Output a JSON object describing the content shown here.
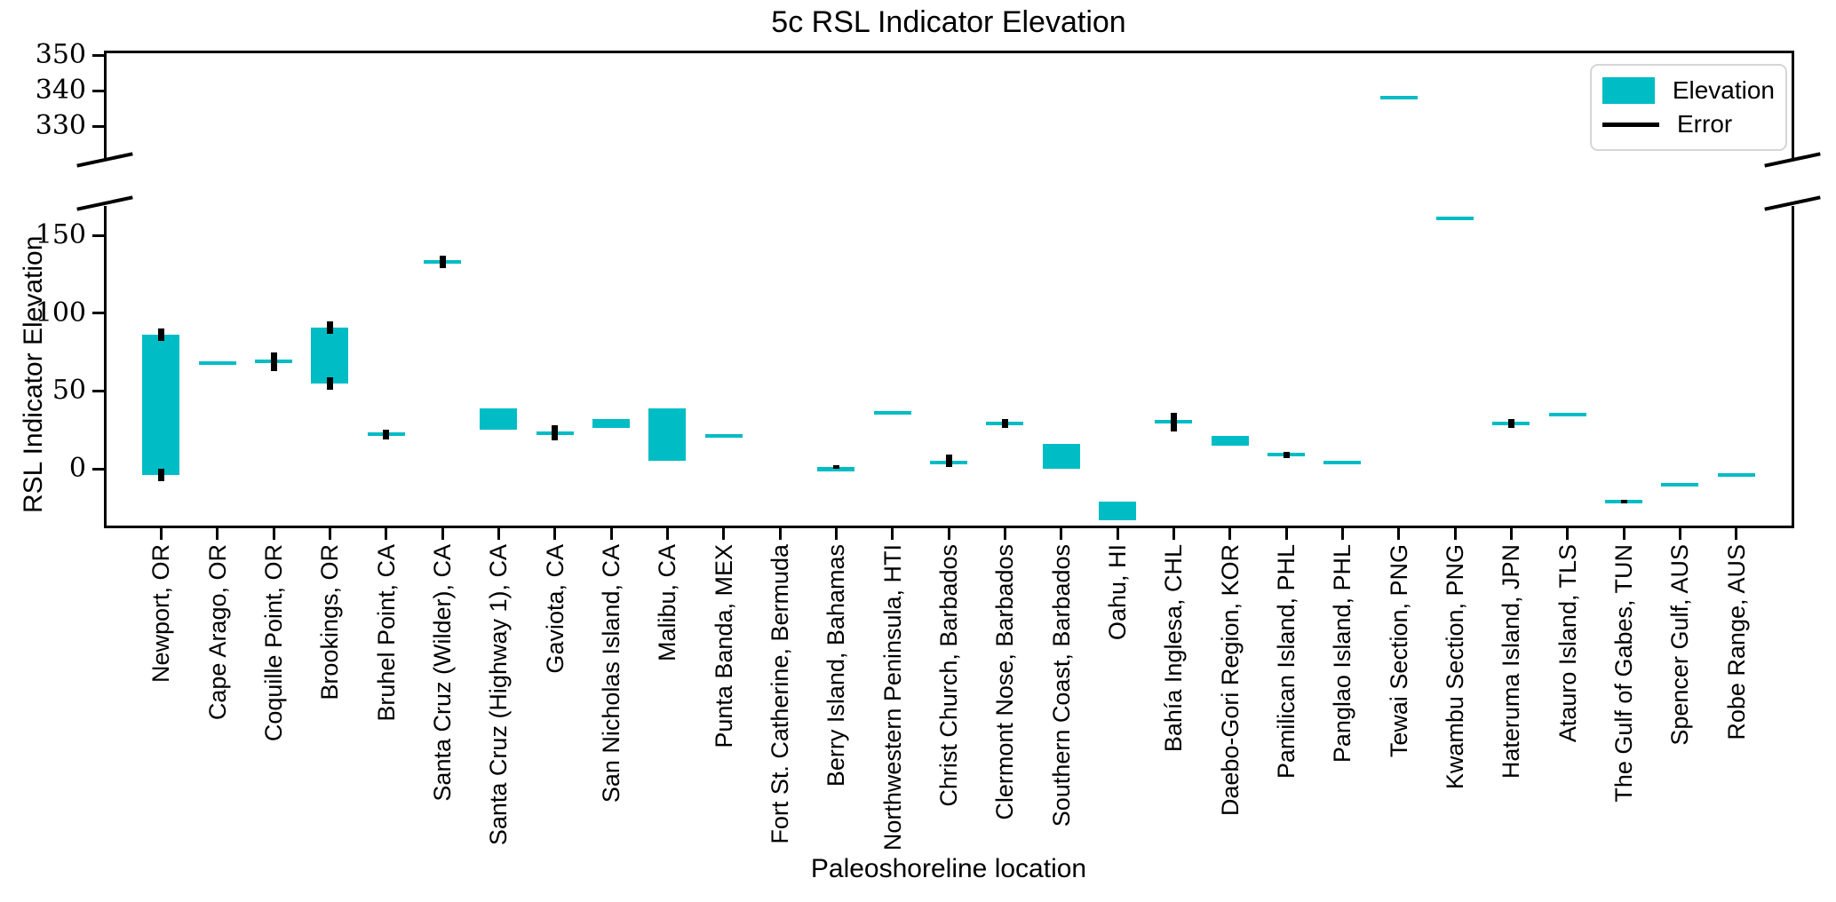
{
  "chart_data": {
    "type": "bar",
    "title": "5c RSL Indicator Elevation",
    "xlabel": "Paleoshoreline location",
    "ylabel": "RSL Indicator Elevation",
    "bar_color": "#00BCC4",
    "error_color": "#000000",
    "legend": [
      {
        "label": "Elevation",
        "swatch": "patch",
        "color": "#00BCC4"
      },
      {
        "label": "Error",
        "swatch": "line",
        "color": "#000000"
      }
    ],
    "y_axis": {
      "broken": true,
      "top_segment_ticks": [
        350,
        340,
        330
      ],
      "bottom_segment_ticks": [
        150,
        100,
        50,
        0
      ],
      "top_segment_range": [
        320.5,
        351
      ],
      "bottom_segment_range": [
        -37,
        169
      ]
    },
    "locations": [
      {
        "label": "Newport, OR",
        "low": -4,
        "high": 86,
        "err_low": 4,
        "err_high": 4
      },
      {
        "label": "Cape Arago, OR",
        "low": 68,
        "high": 68,
        "err_low": null,
        "err_high": null
      },
      {
        "label": "Coquille Point, OR",
        "low": 69,
        "high": 69,
        "err_low": null,
        "err_high": 6
      },
      {
        "label": "Brookings, OR",
        "low": 55,
        "high": 91,
        "err_low": 4,
        "err_high": 4
      },
      {
        "label": "Bruhel Point, CA",
        "low": 22,
        "high": 22,
        "err_low": null,
        "err_high": 3
      },
      {
        "label": "Santa Cruz (Wilder), CA",
        "low": 133,
        "high": 133,
        "err_low": null,
        "err_high": 4
      },
      {
        "label": "Santa Cruz (Highway 1), CA",
        "low": 25,
        "high": 39,
        "err_low": null,
        "err_high": null
      },
      {
        "label": "Gaviota, CA",
        "low": 23,
        "high": 23,
        "err_low": null,
        "err_high": 5
      },
      {
        "label": "San Nicholas Island, CA",
        "low": 26,
        "high": 32,
        "err_low": null,
        "err_high": null
      },
      {
        "label": "Malibu, CA",
        "low": 5,
        "high": 39,
        "err_low": null,
        "err_high": null
      },
      {
        "label": "Punta Banda, MEX",
        "low": 21,
        "high": 21,
        "err_low": null,
        "err_high": null
      },
      {
        "label": "Fort St. Catherine, Bermuda",
        "low": null,
        "high": null,
        "err_low": null,
        "err_high": null
      },
      {
        "label": "Berry Island, Bahamas",
        "low": -2,
        "high": 1,
        "err_low": null,
        "err_high": 1
      },
      {
        "label": "Northwestern Peninsula, HTI",
        "low": 36,
        "high": 36,
        "err_low": null,
        "err_high": null
      },
      {
        "label": "Christ Church, Barbados",
        "low": 3,
        "high": 5,
        "err_low": null,
        "err_high": 4
      },
      {
        "label": "Clermont Nose, Barbados",
        "low": 29,
        "high": 29,
        "err_low": null,
        "err_high": 3
      },
      {
        "label": "Southern Coast, Barbados",
        "low": 0,
        "high": 16,
        "err_low": null,
        "err_high": null
      },
      {
        "label": "Oahu, HI",
        "low": -33,
        "high": -21,
        "err_low": null,
        "err_high": null
      },
      {
        "label": "Bahía Inglesa, CHL",
        "low": 30,
        "high": 30,
        "err_low": null,
        "err_high": 6
      },
      {
        "label": "Daebo-Gori Region, KOR",
        "low": 15,
        "high": 21,
        "err_low": null,
        "err_high": null
      },
      {
        "label": "Pamilican Island, PHL",
        "low": 9,
        "high": 9,
        "err_low": null,
        "err_high": 2
      },
      {
        "label": "Panglao Island, PHL",
        "low": 4,
        "high": 4,
        "err_low": null,
        "err_high": null
      },
      {
        "label": "Tewai Section, PNG",
        "low": 338,
        "high": 338,
        "err_low": null,
        "err_high": null
      },
      {
        "label": "Kwambu Section, PNG",
        "low": 161,
        "high": 161,
        "err_low": null,
        "err_high": null
      },
      {
        "label": "Hateruma Island, JPN",
        "low": 29,
        "high": 29,
        "err_low": null,
        "err_high": 3
      },
      {
        "label": "Atauro Island, TLS",
        "low": 35,
        "high": 35,
        "err_low": null,
        "err_high": null
      },
      {
        "label": "The Gulf of Gabes, TUN",
        "low": -21,
        "high": -21,
        "err_low": null,
        "err_high": 1
      },
      {
        "label": "Spencer Gulf, AUS",
        "low": -10,
        "high": -10,
        "err_low": null,
        "err_high": null
      },
      {
        "label": "Robe Range, AUS",
        "low": -4,
        "high": -4,
        "err_low": null,
        "err_high": null
      }
    ]
  }
}
